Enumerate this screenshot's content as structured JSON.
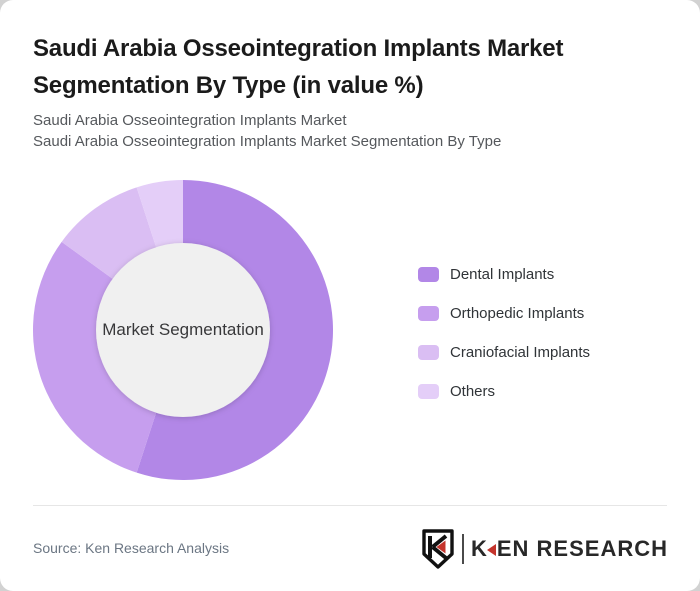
{
  "page": {
    "background_color": "#d2d2d2",
    "card_color": "#ffffff"
  },
  "header": {
    "title": "Saudi Arabia Osseointegration Implants Market Segmentation By Type (in value %)",
    "subtitle_line1": "Saudi Arabia Osseointegration Implants Market",
    "subtitle_line2": "Saudi Arabia Osseointegration Implants Market Segmentation By Type"
  },
  "chart_data": {
    "type": "pie",
    "variant": "donut",
    "title": "Saudi Arabia Osseointegration Implants Market Segmentation By Type (in value %)",
    "units": "value %",
    "center_label": "Market Segmentation",
    "start_angle_deg": 0,
    "direction": "clockwise",
    "legend_position": "right",
    "hole_color": "#f0f0f0",
    "segments": [
      {
        "label": "Dental Implants",
        "value": 55,
        "color": "#b287e7"
      },
      {
        "label": "Orthopedic Implants",
        "value": 30,
        "color": "#c69eee"
      },
      {
        "label": "Craniofacial Implants",
        "value": 10,
        "color": "#dabef3"
      },
      {
        "label": "Others",
        "value": 5,
        "color": "#e4cef8"
      }
    ]
  },
  "footer": {
    "source": "Source: Ken Research Analysis",
    "logo": {
      "badge_letter": "K",
      "wordmark_first_letter": "K",
      "wordmark_rest": "EN RESEARCH",
      "accent_color": "#c4342c",
      "text_color": "#282828"
    }
  }
}
